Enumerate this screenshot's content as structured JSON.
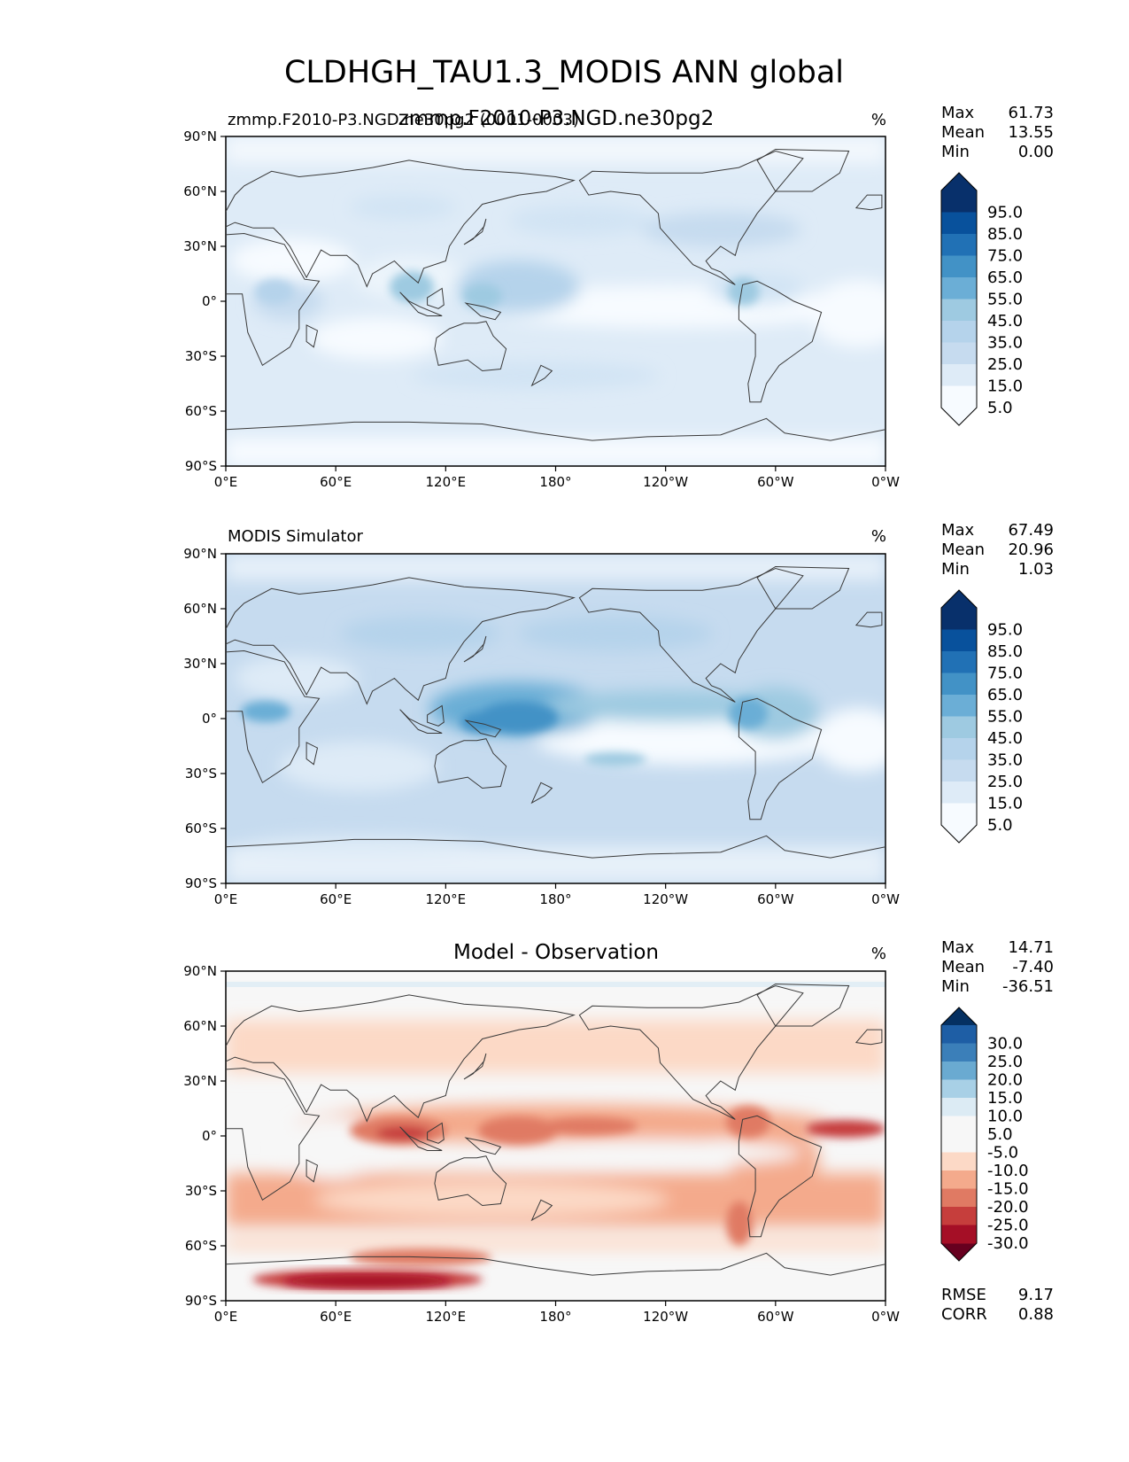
{
  "figure": {
    "title": "CLDHGH_TAU1.3_MODIS ANN global"
  },
  "colors": {
    "sequential": [
      "#f7fbff",
      "#deebf7",
      "#c6dbef",
      "#b5d3eb",
      "#9ecae1",
      "#6baed6",
      "#4292c6",
      "#2171b5",
      "#08519c",
      "#08306b"
    ],
    "diverging_under": "#67001f",
    "diverging_over": "#053061",
    "diverging": [
      "#a50f26",
      "#c63e3c",
      "#e07a63",
      "#f4aa8c",
      "#fcd9c6",
      "#f7f7f7",
      "#f7f7f7",
      "#dcebf4",
      "#a8d0e6",
      "#6aaad1",
      "#3b7fb9",
      "#1e5ea5"
    ],
    "coast": "#3a3a3a"
  },
  "axis": {
    "yticks": [
      "90°N",
      "60°N",
      "30°N",
      "0°",
      "30°S",
      "60°S",
      "90°S"
    ],
    "xticks": [
      "0°E",
      "60°E",
      "120°E",
      "180°",
      "120°W",
      "60°W",
      "0°W"
    ]
  },
  "chart_data": [
    {
      "type": "heatmap",
      "panel": "test",
      "title_left": "zmmp.F2010-P3.NGD.ne30pg2 (0001-0003)",
      "title_center": "zmmp.F2010-P3.NGD.ne30pg2",
      "units": "%",
      "lat_range": [
        -90,
        90
      ],
      "lon_range": [
        0,
        360
      ],
      "stats": [
        {
          "label": "Max",
          "value": "61.73"
        },
        {
          "label": "Mean",
          "value": "13.55"
        },
        {
          "label": "Min",
          "value": "0.00"
        }
      ],
      "colorbar_levels": [
        "95.0",
        "85.0",
        "75.0",
        "65.0",
        "55.0",
        "45.0",
        "35.0",
        "25.0",
        "15.0",
        "5.0"
      ]
    },
    {
      "type": "heatmap",
      "panel": "reference",
      "title_left": "MODIS Simulator",
      "title_center": "",
      "units": "%",
      "lat_range": [
        -90,
        90
      ],
      "lon_range": [
        0,
        360
      ],
      "stats": [
        {
          "label": "Max",
          "value": "67.49"
        },
        {
          "label": "Mean",
          "value": "20.96"
        },
        {
          "label": "Min",
          "value": "1.03"
        }
      ],
      "colorbar_levels": [
        "95.0",
        "85.0",
        "75.0",
        "65.0",
        "55.0",
        "45.0",
        "35.0",
        "25.0",
        "15.0",
        "5.0"
      ]
    },
    {
      "type": "heatmap",
      "panel": "difference",
      "title_left": "",
      "title_center": "Model - Observation",
      "units": "%",
      "lat_range": [
        -90,
        90
      ],
      "lon_range": [
        0,
        360
      ],
      "stats": [
        {
          "label": "Max",
          "value": "14.71"
        },
        {
          "label": "Mean",
          "value": "-7.40"
        },
        {
          "label": "Min",
          "value": "-36.51"
        }
      ],
      "colorbar_levels": [
        "30.0",
        "25.0",
        "20.0",
        "15.0",
        "10.0",
        "5.0",
        "-5.0",
        "-10.0",
        "-15.0",
        "-20.0",
        "-25.0",
        "-30.0"
      ],
      "extra_stats": [
        {
          "label": "RMSE",
          "value": "9.17"
        },
        {
          "label": "CORR",
          "value": "0.88"
        }
      ]
    }
  ]
}
